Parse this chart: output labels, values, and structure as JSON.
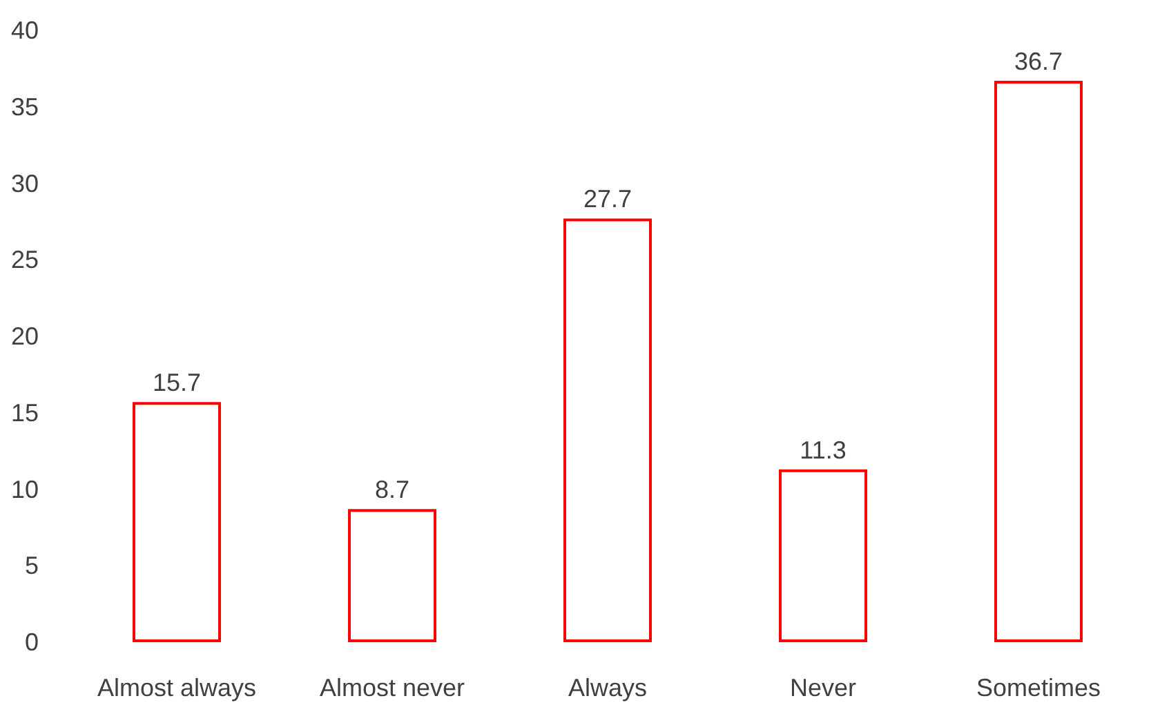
{
  "chart_data": {
    "type": "bar",
    "categories": [
      "Almost always",
      "Almost never",
      "Always",
      "Never",
      "Sometimes"
    ],
    "values": [
      15.7,
      8.7,
      27.7,
      11.3,
      36.7
    ],
    "color": "#ff0000",
    "ylim": [
      0,
      40
    ],
    "yticks": [
      0,
      5,
      10,
      15,
      20,
      25,
      30,
      35,
      40
    ],
    "data_labels": true
  }
}
